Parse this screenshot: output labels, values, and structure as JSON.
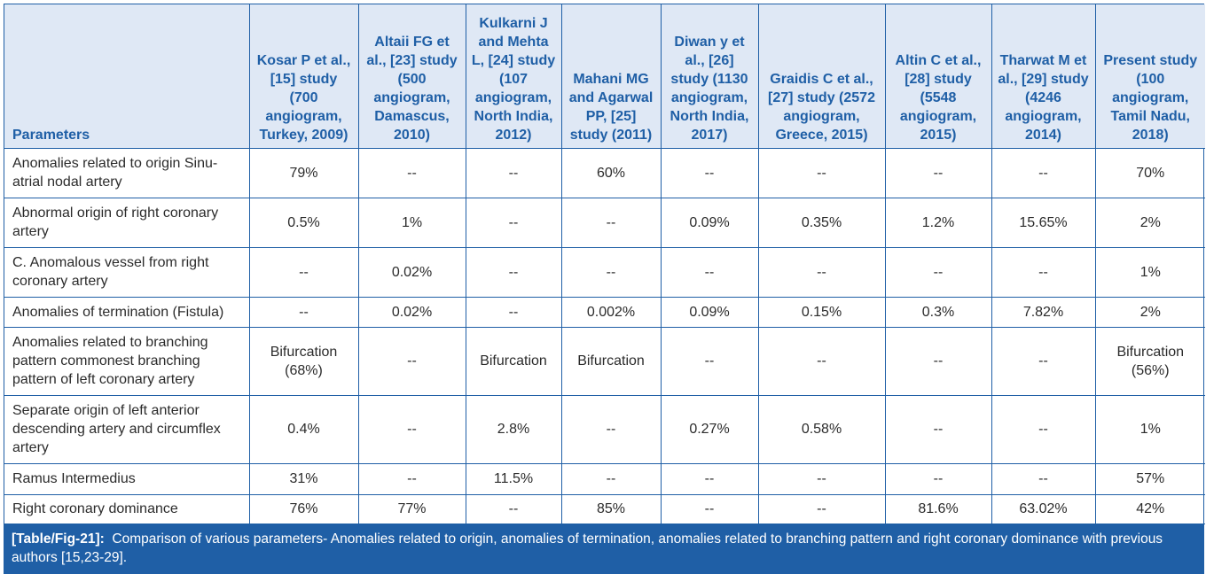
{
  "columns": [
    "Parameters",
    "Kosar P et al., [15] study (700 angiogram, Turkey, 2009)",
    "Altaii FG et al., [23] study (500 angiogram, Damascus, 2010)",
    "Kulkarni J and Mehta L, [24] study (107 angiogram, North India, 2012)",
    "Mahani MG and Agarwal PP, [25] study (2011)",
    "Diwan y et al., [26] study (1130 angiogram, North India, 2017)",
    "Graidis C et al., [27] study (2572 angiogram, Greece, 2015)",
    "Altin C et al., [28] study (5548 angiogram, 2015)",
    "Tharwat M et al., [29] study (4246 angiogram, 2014)",
    "Present study (100 angiogram, Tamil Nadu, 2018)"
  ],
  "rows": [
    {
      "parameter": "Anomalies related to origin Sinu-atrial nodal artery",
      "values": [
        "79%",
        "--",
        "--",
        "60%",
        "--",
        "--",
        "--",
        "--",
        "70%"
      ]
    },
    {
      "parameter": "Abnormal origin of right coronary artery",
      "values": [
        "0.5%",
        "1%",
        "--",
        "--",
        "0.09%",
        "0.35%",
        "1.2%",
        "15.65%",
        "2%"
      ]
    },
    {
      "parameter": "C. Anomalous vessel from right coronary artery",
      "values": [
        "--",
        "0.02%",
        "--",
        "--",
        "--",
        "--",
        "--",
        "--",
        "1%"
      ]
    },
    {
      "parameter": "Anomalies of termination (Fistula)",
      "values": [
        "--",
        "0.02%",
        "--",
        "0.002%",
        "0.09%",
        "0.15%",
        "0.3%",
        "7.82%",
        "2%"
      ]
    },
    {
      "parameter": "Anomalies related to branching pattern commonest branching pattern of left coronary artery",
      "values": [
        "Bifurcation (68%)",
        "--",
        "Bifurcation",
        "Bifurcation",
        "--",
        "--",
        "--",
        "--",
        "Bifurcation (56%)"
      ]
    },
    {
      "parameter": "Separate origin of left anterior descending artery and circumflex artery",
      "values": [
        "0.4%",
        "--",
        "2.8%",
        "--",
        "0.27%",
        "0.58%",
        "--",
        "--",
        "1%"
      ]
    },
    {
      "parameter": "Ramus Intermedius",
      "values": [
        "31%",
        "--",
        "11.5%",
        "--",
        "--",
        "--",
        "--",
        "--",
        "57%"
      ]
    },
    {
      "parameter": "Right coronary dominance",
      "values": [
        "76%",
        "77%",
        "--",
        "85%",
        "--",
        "--",
        "81.6%",
        "63.02%",
        "42%"
      ]
    }
  ],
  "caption": {
    "label": "[Table/Fig-21]:",
    "text": "Comparison of various parameters- Anomalies related to origin, anomalies of termination, anomalies related to branching pattern and right coronary dominance with previous authors [15,23-29]."
  },
  "colors": {
    "border": "#1f5fa6",
    "header_bg": "#dfe8f5",
    "header_text": "#1f5fa6",
    "caption_bg": "#1f5fa6",
    "caption_text": "#ffffff"
  }
}
